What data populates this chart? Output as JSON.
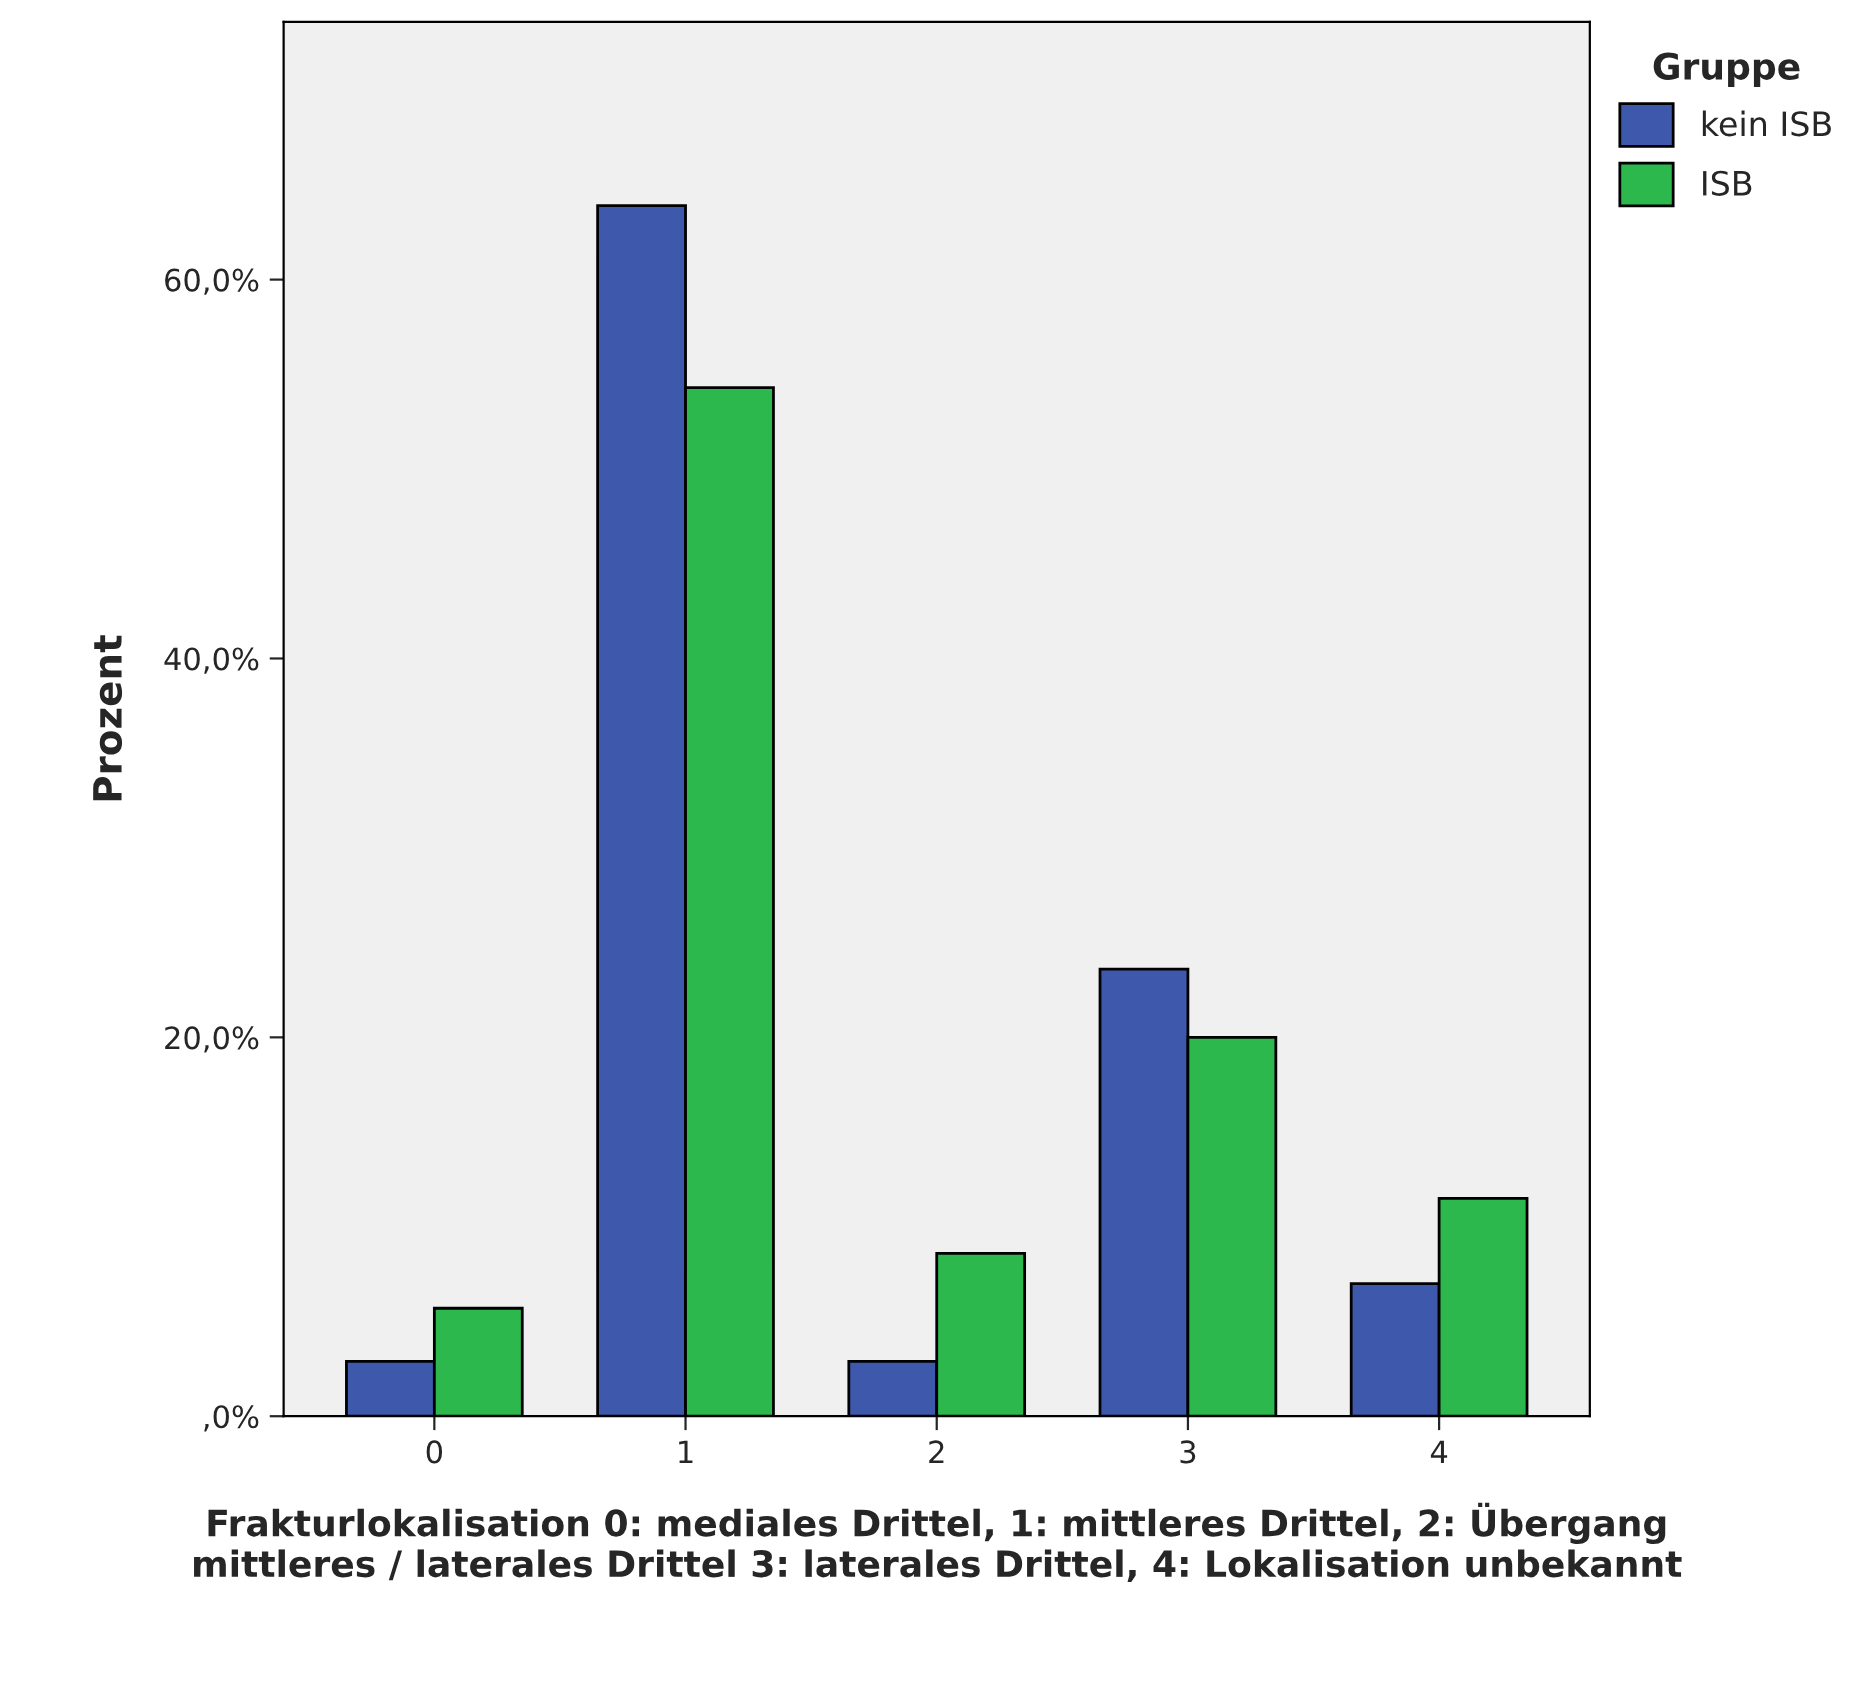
{
  "chart_data": {
    "type": "bar",
    "xlabel": "Frakturlokalisation 0: mediales Drittel, 1: mittleres Drittel, 2: Übergang mittleres / laterales Drittel 3: laterales Drittel, 4: Lokalisation unbekannt",
    "ylabel": "Prozent",
    "legend_title": "Gruppe",
    "categories": [
      "0",
      "1",
      "2",
      "3",
      "4"
    ],
    "series": [
      {
        "name": "kein ISB",
        "color": "#3e58ac",
        "values": [
          2.9,
          63.9,
          2.9,
          23.6,
          7.0
        ]
      },
      {
        "name": "ISB",
        "color": "#2db84d",
        "values": [
          5.7,
          54.3,
          8.6,
          20.0,
          11.5
        ]
      }
    ],
    "ylim": [
      0,
      73.6
    ],
    "yticks": [
      {
        "value": 0,
        "label": ",0%"
      },
      {
        "value": 20,
        "label": "20,0%"
      },
      {
        "value": 40,
        "label": "40,0%"
      },
      {
        "value": 60,
        "label": "60,0%"
      }
    ],
    "grid": false,
    "legend": "top right"
  }
}
